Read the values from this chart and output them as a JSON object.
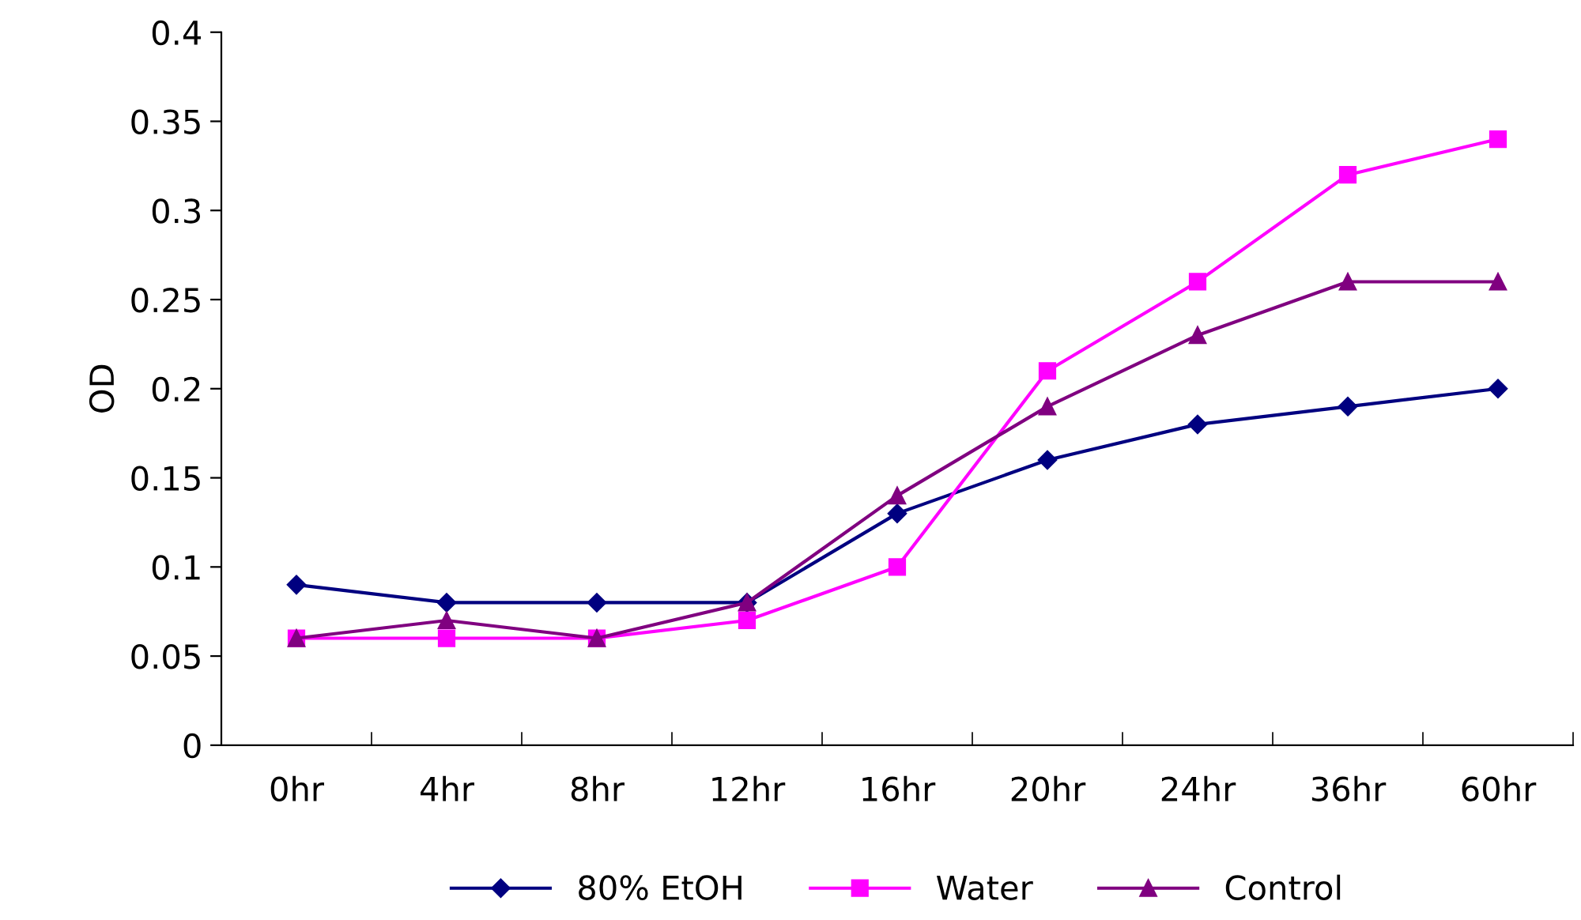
{
  "chart_data": {
    "type": "line",
    "ylabel": "OD",
    "categories": [
      "0hr",
      "4hr",
      "8hr",
      "12hr",
      "16hr",
      "20hr",
      "24hr",
      "36hr",
      "60hr"
    ],
    "series": [
      {
        "name": "80% EtOH",
        "color": "#000080",
        "marker": "diamond",
        "values": [
          0.09,
          0.08,
          0.08,
          0.08,
          0.13,
          0.16,
          0.18,
          0.19,
          0.2
        ]
      },
      {
        "name": "Water",
        "color": "#ff00ff",
        "marker": "square",
        "values": [
          0.06,
          0.06,
          0.06,
          0.07,
          0.1,
          0.21,
          0.26,
          0.32,
          0.34
        ]
      },
      {
        "name": "Control",
        "color": "#800080",
        "marker": "triangle",
        "values": [
          0.06,
          0.07,
          0.06,
          0.08,
          0.14,
          0.19,
          0.23,
          0.26,
          0.26
        ]
      }
    ],
    "ylim": [
      0,
      0.4
    ],
    "yticks": [
      0,
      0.05,
      0.1,
      0.15,
      0.2,
      0.25,
      0.3,
      0.35,
      0.4
    ],
    "grid": false,
    "legend": "bottom"
  }
}
